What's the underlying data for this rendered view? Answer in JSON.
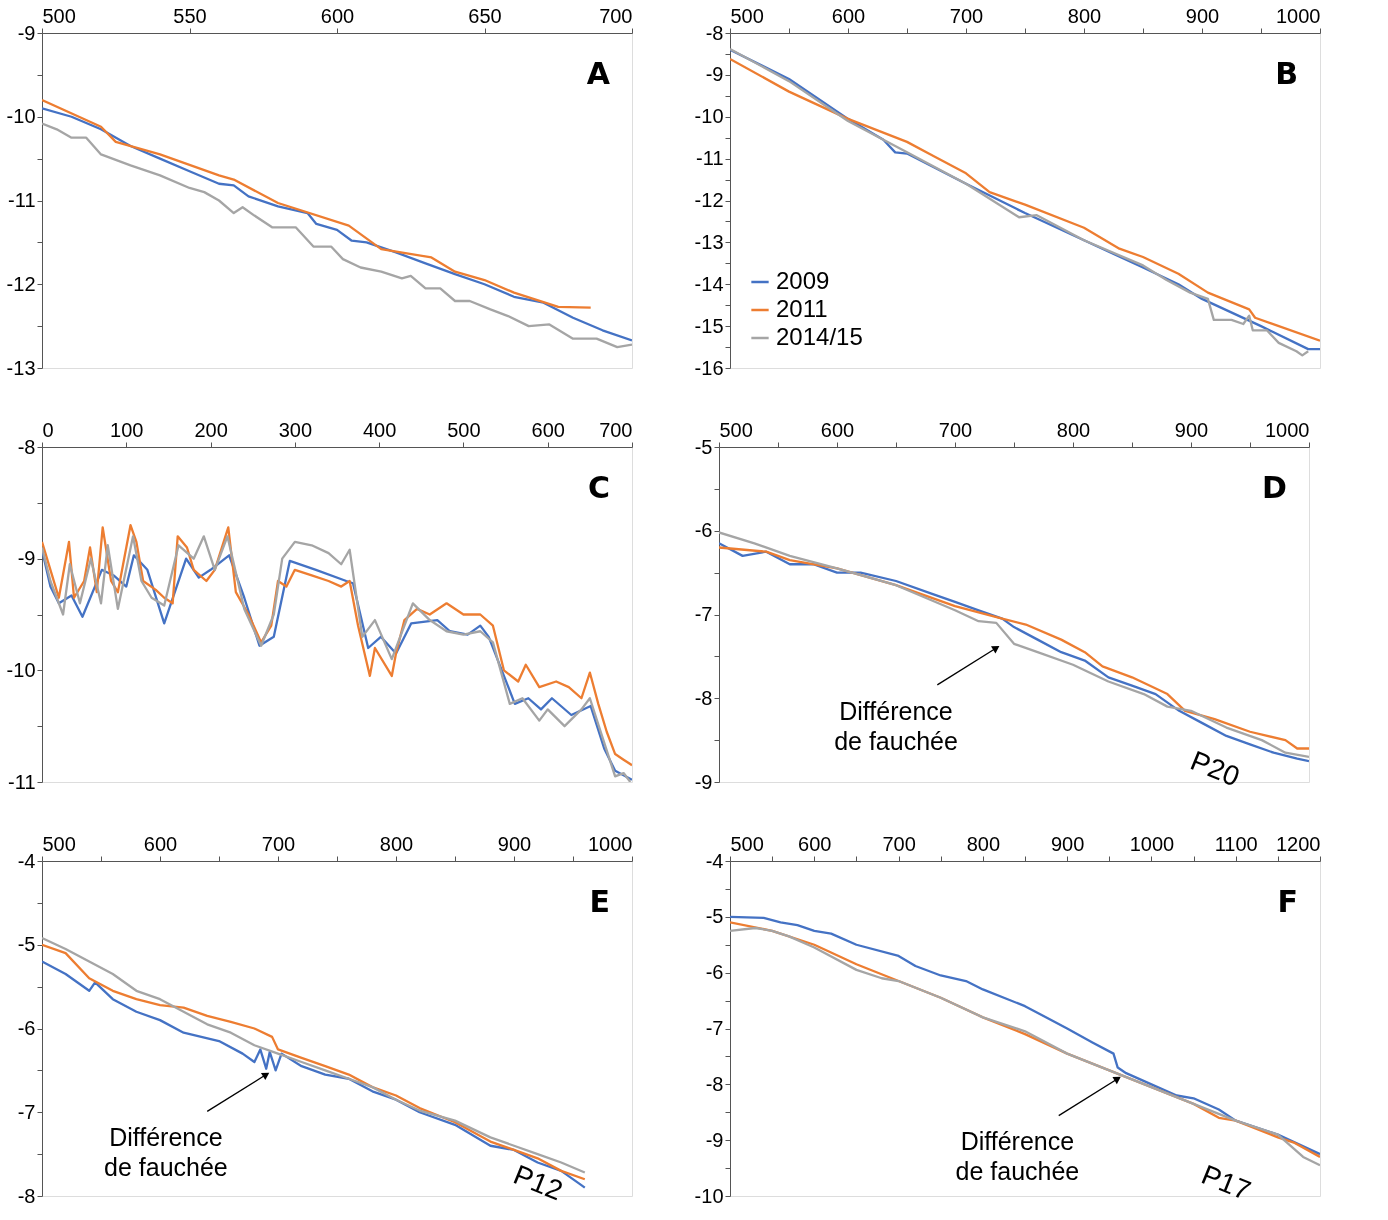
{
  "chart_data": [
    {
      "type": "line",
      "title": "A",
      "legend": false,
      "xlim": [
        500,
        700
      ],
      "xticks": [
        500,
        550,
        600,
        650,
        700
      ],
      "ylim": [
        -13,
        -9
      ],
      "yticks": [
        -9,
        {
          "value": -9.5,
          "label": null
        },
        -10,
        {
          "value": -10.5,
          "label": null
        },
        -11,
        {
          "value": -11.5,
          "label": null
        },
        -12,
        {
          "value": -12.5,
          "label": null
        },
        -13
      ],
      "series": [
        {
          "color": "#4472c4",
          "x": [
            500,
            510,
            520,
            530,
            540,
            550,
            560,
            565,
            570,
            580,
            590,
            593,
            600,
            605,
            610,
            620,
            630,
            640,
            650,
            660,
            670,
            680,
            690,
            700
          ],
          "values": [
            -9.9,
            -10.0,
            -10.15,
            -10.35,
            -10.5,
            -10.65,
            -10.8,
            -10.82,
            -10.95,
            -11.07,
            -11.15,
            -11.28,
            -11.35,
            -11.48,
            -11.5,
            -11.62,
            -11.75,
            -11.88,
            -12.0,
            -12.15,
            -12.22,
            -12.4,
            -12.55,
            -12.67
          ]
        },
        {
          "color": "#ed7d31",
          "x": [
            500,
            520,
            525,
            540,
            560,
            565,
            580,
            604,
            615,
            632,
            640,
            650,
            660,
            675,
            686
          ],
          "values": [
            -9.8,
            -10.12,
            -10.3,
            -10.45,
            -10.7,
            -10.75,
            -11.03,
            -11.3,
            -11.58,
            -11.68,
            -11.85,
            -11.95,
            -12.1,
            -12.27,
            -12.28
          ]
        },
        {
          "color": "#a5a5a5",
          "x": [
            500,
            505,
            510,
            515,
            520,
            530,
            540,
            550,
            555,
            560,
            565,
            568,
            572,
            578,
            586,
            592,
            598,
            602,
            608,
            615,
            622,
            625,
            630,
            635,
            640,
            645,
            652,
            658,
            665,
            672,
            680,
            688,
            695,
            700
          ],
          "values": [
            -10.08,
            -10.15,
            -10.25,
            -10.25,
            -10.45,
            -10.58,
            -10.7,
            -10.85,
            -10.9,
            -11.0,
            -11.15,
            -11.08,
            -11.18,
            -11.32,
            -11.32,
            -11.55,
            -11.55,
            -11.7,
            -11.8,
            -11.85,
            -11.93,
            -11.9,
            -12.05,
            -12.05,
            -12.2,
            -12.2,
            -12.3,
            -12.38,
            -12.5,
            -12.48,
            -12.65,
            -12.65,
            -12.75,
            -12.72
          ]
        }
      ]
    },
    {
      "type": "line",
      "title": "B",
      "legend": "bottom left",
      "xlim": [
        500,
        1000
      ],
      "xticks": [
        500,
        {
          "value": 550,
          "label": null
        },
        600,
        {
          "value": 650,
          "label": null
        },
        700,
        {
          "value": 750,
          "label": null
        },
        800,
        {
          "value": 850,
          "label": null
        },
        900,
        {
          "value": 950,
          "label": null
        },
        1000
      ],
      "ylim": [
        -16,
        -8
      ],
      "yticks": [
        -8,
        {
          "value": -8.5,
          "label": null
        },
        -9,
        {
          "value": -9.5,
          "label": null
        },
        -10,
        {
          "value": -10.5,
          "label": null
        },
        -11,
        {
          "value": -11.5,
          "label": null
        },
        -12,
        {
          "value": -12.5,
          "label": null
        },
        -13,
        {
          "value": -13.5,
          "label": null
        },
        -14,
        {
          "value": -14.5,
          "label": null
        },
        -15,
        {
          "value": -15.5,
          "label": null
        },
        -16
      ],
      "series": [
        {
          "name": "2009",
          "color": "#4472c4",
          "x": [
            500,
            550,
            600,
            630,
            640,
            650,
            700,
            750,
            800,
            850,
            880,
            900,
            950,
            990,
            1000
          ],
          "values": [
            -8.4,
            -9.1,
            -10.05,
            -10.55,
            -10.85,
            -10.88,
            -11.6,
            -12.3,
            -12.95,
            -13.6,
            -14.0,
            -14.35,
            -15.0,
            -15.55,
            -15.55
          ]
        },
        {
          "name": "2011",
          "color": "#ed7d31",
          "x": [
            500,
            550,
            600,
            650,
            670,
            700,
            720,
            750,
            800,
            830,
            850,
            880,
            905,
            940,
            945,
            1000
          ],
          "values": [
            -8.62,
            -9.4,
            -10.05,
            -10.6,
            -10.9,
            -11.35,
            -11.8,
            -12.1,
            -12.65,
            -13.15,
            -13.35,
            -13.75,
            -14.2,
            -14.6,
            -14.8,
            -15.35
          ]
        },
        {
          "name": "2014/15",
          "color": "#a5a5a5",
          "x": [
            500,
            550,
            600,
            650,
            700,
            745,
            760,
            800,
            850,
            870,
            890,
            905,
            910,
            925,
            935,
            940,
            943,
            955,
            965,
            980,
            985,
            990
          ],
          "values": [
            -8.38,
            -9.15,
            -10.1,
            -10.85,
            -11.6,
            -12.4,
            -12.35,
            -12.95,
            -13.55,
            -13.9,
            -14.2,
            -14.35,
            -14.85,
            -14.85,
            -14.95,
            -14.75,
            -15.1,
            -15.1,
            -15.4,
            -15.6,
            -15.7,
            -15.6
          ]
        }
      ]
    },
    {
      "type": "line",
      "title": "C",
      "legend": false,
      "xlim": [
        0,
        700
      ],
      "xticks": [
        0,
        100,
        200,
        300,
        400,
        500,
        600,
        700
      ],
      "ylim": [
        -11,
        -8
      ],
      "yticks": [
        -8,
        {
          "value": -8.5,
          "label": null
        },
        -9,
        {
          "value": -9.5,
          "label": null
        },
        -10,
        {
          "value": -10.5,
          "label": null
        },
        -11
      ],
      "series": [
        {
          "color": "#4472c4",
          "x": [
            0,
            10,
            20,
            35,
            48,
            71,
            85,
            100,
            109,
            125,
            145,
            171,
            186,
            200,
            222,
            240,
            258,
            275,
            294,
            325,
            361,
            369,
            387,
            402,
            420,
            438,
            469,
            484,
            505,
            520,
            530,
            561,
            577,
            592,
            605,
            628,
            651,
            667,
            680,
            700
          ],
          "values": [
            -8.92,
            -9.25,
            -9.4,
            -9.33,
            -9.52,
            -9.1,
            -9.15,
            -9.25,
            -8.97,
            -9.1,
            -9.58,
            -9.0,
            -9.17,
            -9.1,
            -8.97,
            -9.35,
            -9.78,
            -9.7,
            -9.02,
            -9.1,
            -9.2,
            -9.22,
            -9.8,
            -9.7,
            -9.85,
            -9.58,
            -9.55,
            -9.65,
            -9.68,
            -9.6,
            -9.7,
            -10.3,
            -10.25,
            -10.35,
            -10.25,
            -10.4,
            -10.32,
            -10.7,
            -10.9,
            -10.98
          ]
        },
        {
          "color": "#ed7d31",
          "x": [
            0,
            10,
            20,
            32,
            38,
            50,
            57,
            65,
            72,
            82,
            90,
            100,
            105,
            112,
            120,
            135,
            145,
            155,
            161,
            172,
            180,
            195,
            205,
            221,
            230,
            245,
            260,
            272,
            280,
            290,
            300,
            320,
            340,
            355,
            365,
            375,
            389,
            395,
            415,
            420,
            430,
            445,
            460,
            480,
            500,
            520,
            535,
            548,
            565,
            574,
            590,
            610,
            625,
            640,
            650,
            660,
            670,
            680,
            690,
            700
          ],
          "values": [
            -8.85,
            -9.1,
            -9.35,
            -8.85,
            -9.35,
            -9.2,
            -8.9,
            -9.3,
            -8.72,
            -9.2,
            -9.3,
            -8.9,
            -8.7,
            -8.85,
            -9.2,
            -9.28,
            -9.35,
            -9.4,
            -8.8,
            -8.9,
            -9.1,
            -9.2,
            -9.1,
            -8.72,
            -9.3,
            -9.5,
            -9.75,
            -9.6,
            -9.2,
            -9.25,
            -9.1,
            -9.15,
            -9.2,
            -9.25,
            -9.2,
            -9.6,
            -10.05,
            -9.8,
            -10.05,
            -9.85,
            -9.55,
            -9.45,
            -9.5,
            -9.4,
            -9.5,
            -9.5,
            -9.6,
            -10.0,
            -10.1,
            -9.95,
            -10.15,
            -10.1,
            -10.15,
            -10.25,
            -10.02,
            -10.3,
            -10.55,
            -10.75,
            -10.8,
            -10.85
          ]
        },
        {
          "color": "#a5a5a5",
          "x": [
            0,
            10,
            25,
            33,
            45,
            58,
            70,
            78,
            90,
            108,
            118,
            130,
            145,
            162,
            180,
            192,
            205,
            220,
            240,
            260,
            275,
            285,
            300,
            320,
            340,
            355,
            365,
            380,
            395,
            415,
            430,
            440,
            460,
            480,
            500,
            520,
            535,
            555,
            570,
            590,
            600,
            620,
            640,
            650,
            665,
            680,
            690,
            698
          ],
          "values": [
            -8.9,
            -9.2,
            -9.5,
            -9.05,
            -9.4,
            -9.0,
            -9.4,
            -8.88,
            -9.45,
            -8.8,
            -9.2,
            -9.35,
            -9.42,
            -8.88,
            -9.0,
            -8.8,
            -9.1,
            -8.8,
            -9.45,
            -9.78,
            -9.5,
            -9.0,
            -8.85,
            -8.88,
            -8.95,
            -9.05,
            -8.92,
            -9.7,
            -9.55,
            -9.9,
            -9.6,
            -9.4,
            -9.55,
            -9.65,
            -9.68,
            -9.65,
            -9.75,
            -10.3,
            -10.25,
            -10.45,
            -10.35,
            -10.5,
            -10.35,
            -10.25,
            -10.6,
            -10.95,
            -10.92,
            -11.0
          ]
        }
      ]
    },
    {
      "type": "line",
      "title": "D",
      "legend": false,
      "xlim": [
        500,
        1000
      ],
      "xticks": [
        500,
        {
          "value": 550,
          "label": null
        },
        600,
        {
          "value": 650,
          "label": null
        },
        700,
        {
          "value": 750,
          "label": null
        },
        800,
        {
          "value": 850,
          "label": null
        },
        900,
        {
          "value": 950,
          "label": null
        },
        1000
      ],
      "ylim": [
        -9,
        -5
      ],
      "yticks": [
        -5,
        {
          "value": -5.5,
          "label": null
        },
        -6,
        {
          "value": -6.5,
          "label": null
        },
        -7,
        {
          "value": -7.5,
          "label": null
        },
        -8,
        {
          "value": -8.5,
          "label": null
        },
        -9
      ],
      "annotations": [
        {
          "text": "Différence de fauchée",
          "x": 735,
          "y": -7.4
        },
        "P20"
      ],
      "series": [
        {
          "color": "#4472c4",
          "x": [
            500,
            520,
            540,
            560,
            580,
            600,
            620,
            650,
            680,
            700,
            720,
            740,
            750,
            770,
            790,
            810,
            830,
            850,
            870,
            890,
            910,
            930,
            950,
            970,
            990,
            1000
          ],
          "values": [
            -6.15,
            -6.3,
            -6.25,
            -6.4,
            -6.4,
            -6.5,
            -6.5,
            -6.6,
            -6.75,
            -6.85,
            -6.95,
            -7.05,
            -7.15,
            -7.3,
            -7.45,
            -7.55,
            -7.75,
            -7.85,
            -7.95,
            -8.15,
            -8.3,
            -8.45,
            -8.55,
            -8.65,
            -8.72,
            -8.75
          ]
        },
        {
          "color": "#ed7d31",
          "x": [
            500,
            540,
            560,
            600,
            650,
            700,
            740,
            760,
            790,
            810,
            825,
            850,
            880,
            895,
            920,
            950,
            980,
            990,
            1000
          ],
          "values": [
            -6.2,
            -6.25,
            -6.35,
            -6.45,
            -6.65,
            -6.9,
            -7.05,
            -7.12,
            -7.3,
            -7.45,
            -7.62,
            -7.75,
            -7.95,
            -8.15,
            -8.25,
            -8.4,
            -8.5,
            -8.6,
            -8.6
          ]
        },
        {
          "color": "#a5a5a5",
          "x": [
            500,
            530,
            560,
            600,
            650,
            700,
            720,
            735,
            750,
            770,
            800,
            830,
            860,
            880,
            900,
            930,
            960,
            980,
            1000
          ],
          "values": [
            -6.02,
            -6.15,
            -6.3,
            -6.45,
            -6.65,
            -6.95,
            -7.08,
            -7.1,
            -7.35,
            -7.45,
            -7.6,
            -7.8,
            -7.95,
            -8.1,
            -8.15,
            -8.35,
            -8.5,
            -8.65,
            -8.7
          ]
        }
      ]
    },
    {
      "type": "line",
      "title": "E",
      "legend": false,
      "xlim": [
        500,
        1000
      ],
      "xticks": [
        500,
        {
          "value": 550,
          "label": null
        },
        600,
        {
          "value": 650,
          "label": null
        },
        700,
        {
          "value": 750,
          "label": null
        },
        800,
        {
          "value": 850,
          "label": null
        },
        900,
        {
          "value": 950,
          "label": null
        },
        1000
      ],
      "ylim": [
        -8,
        -4
      ],
      "yticks": [
        -4,
        {
          "value": -4.5,
          "label": null
        },
        -5,
        {
          "value": -5.5,
          "label": null
        },
        -6,
        {
          "value": -6.5,
          "label": null
        },
        -7,
        {
          "value": -7.5,
          "label": null
        },
        -8
      ],
      "annotations": [
        {
          "text": "Différence de fauchée",
          "x": 690,
          "y": -6.55
        },
        "P12"
      ],
      "series": [
        {
          "color": "#4472c4",
          "x": [
            500,
            520,
            540,
            545,
            560,
            580,
            600,
            620,
            650,
            670,
            680,
            685,
            690,
            693,
            698,
            703,
            720,
            740,
            760,
            780,
            800,
            820,
            850,
            880,
            900,
            920,
            940,
            955,
            960
          ],
          "values": [
            -5.2,
            -5.35,
            -5.55,
            -5.45,
            -5.65,
            -5.8,
            -5.9,
            -6.05,
            -6.15,
            -6.3,
            -6.4,
            -6.25,
            -6.48,
            -6.28,
            -6.5,
            -6.3,
            -6.45,
            -6.55,
            -6.6,
            -6.75,
            -6.85,
            -7.0,
            -7.15,
            -7.4,
            -7.45,
            -7.6,
            -7.7,
            -7.85,
            -7.9
          ]
        },
        {
          "color": "#ed7d31",
          "x": [
            500,
            520,
            540,
            560,
            580,
            600,
            620,
            640,
            660,
            680,
            695,
            700,
            720,
            740,
            760,
            780,
            800,
            820,
            850,
            880,
            900,
            920,
            940,
            960
          ],
          "values": [
            -5.0,
            -5.1,
            -5.4,
            -5.55,
            -5.65,
            -5.72,
            -5.75,
            -5.85,
            -5.92,
            -6.0,
            -6.1,
            -6.25,
            -6.35,
            -6.45,
            -6.55,
            -6.7,
            -6.8,
            -6.95,
            -7.12,
            -7.35,
            -7.45,
            -7.55,
            -7.7,
            -7.8
          ]
        },
        {
          "color": "#a5a5a5",
          "x": [
            500,
            520,
            540,
            560,
            580,
            600,
            620,
            640,
            660,
            680,
            700,
            720,
            740,
            760,
            780,
            800,
            820,
            850,
            880,
            900,
            920,
            940,
            960
          ],
          "values": [
            -4.92,
            -5.05,
            -5.2,
            -5.35,
            -5.55,
            -5.65,
            -5.8,
            -5.95,
            -6.05,
            -6.2,
            -6.3,
            -6.4,
            -6.5,
            -6.6,
            -6.7,
            -6.85,
            -6.98,
            -7.1,
            -7.3,
            -7.4,
            -7.5,
            -7.6,
            -7.72
          ]
        }
      ]
    },
    {
      "type": "line",
      "title": "F",
      "legend": false,
      "xlim": [
        500,
        1200
      ],
      "xticks": [
        500,
        {
          "value": 550,
          "label": null
        },
        600,
        {
          "value": 650,
          "label": null
        },
        700,
        {
          "value": 750,
          "label": null
        },
        800,
        {
          "value": 850,
          "label": null
        },
        900,
        {
          "value": 950,
          "label": null
        },
        1000,
        {
          "value": 1050,
          "label": null
        },
        1100,
        {
          "value": 1150,
          "label": null
        },
        1200
      ],
      "ylim": [
        -10,
        -4
      ],
      "yticks": [
        -4,
        {
          "value": -4.5,
          "label": null
        },
        -5,
        {
          "value": -5.5,
          "label": null
        },
        -6,
        {
          "value": -6.5,
          "label": null
        },
        -7,
        {
          "value": -7.5,
          "label": null
        },
        -8,
        {
          "value": -8.5,
          "label": null
        },
        -9,
        {
          "value": -9.5,
          "label": null
        },
        -10
      ],
      "annotations": [
        {
          "text": "Différence de fauchée",
          "x": 960,
          "y": -7.9
        },
        "P17"
      ],
      "series": [
        {
          "color": "#4472c4",
          "x": [
            500,
            540,
            560,
            580,
            600,
            620,
            650,
            700,
            720,
            750,
            780,
            800,
            850,
            900,
            930,
            955,
            960,
            970,
            1000,
            1030,
            1050,
            1080,
            1100,
            1150,
            1200
          ],
          "values": [
            -5.0,
            -5.02,
            -5.1,
            -5.15,
            -5.25,
            -5.3,
            -5.5,
            -5.7,
            -5.88,
            -6.05,
            -6.15,
            -6.3,
            -6.6,
            -7.0,
            -7.25,
            -7.45,
            -7.7,
            -7.8,
            -8.0,
            -8.2,
            -8.25,
            -8.45,
            -8.65,
            -8.9,
            -9.25
          ]
        },
        {
          "color": "#ed7d31",
          "x": [
            500,
            550,
            600,
            650,
            700,
            750,
            800,
            850,
            900,
            950,
            1000,
            1050,
            1080,
            1100,
            1150,
            1170,
            1200
          ],
          "values": [
            -5.1,
            -5.25,
            -5.5,
            -5.85,
            -6.15,
            -6.45,
            -6.8,
            -7.1,
            -7.45,
            -7.75,
            -8.05,
            -8.35,
            -8.6,
            -8.65,
            -8.95,
            -9.05,
            -9.3
          ]
        },
        {
          "color": "#a5a5a5",
          "x": [
            500,
            530,
            550,
            570,
            600,
            650,
            680,
            700,
            750,
            800,
            850,
            900,
            950,
            1000,
            1050,
            1100,
            1150,
            1180,
            1200
          ],
          "values": [
            -5.25,
            -5.2,
            -5.25,
            -5.35,
            -5.55,
            -5.95,
            -6.1,
            -6.15,
            -6.45,
            -6.8,
            -7.05,
            -7.45,
            -7.75,
            -8.05,
            -8.35,
            -8.65,
            -8.9,
            -9.3,
            -9.45
          ]
        }
      ]
    }
  ]
}
